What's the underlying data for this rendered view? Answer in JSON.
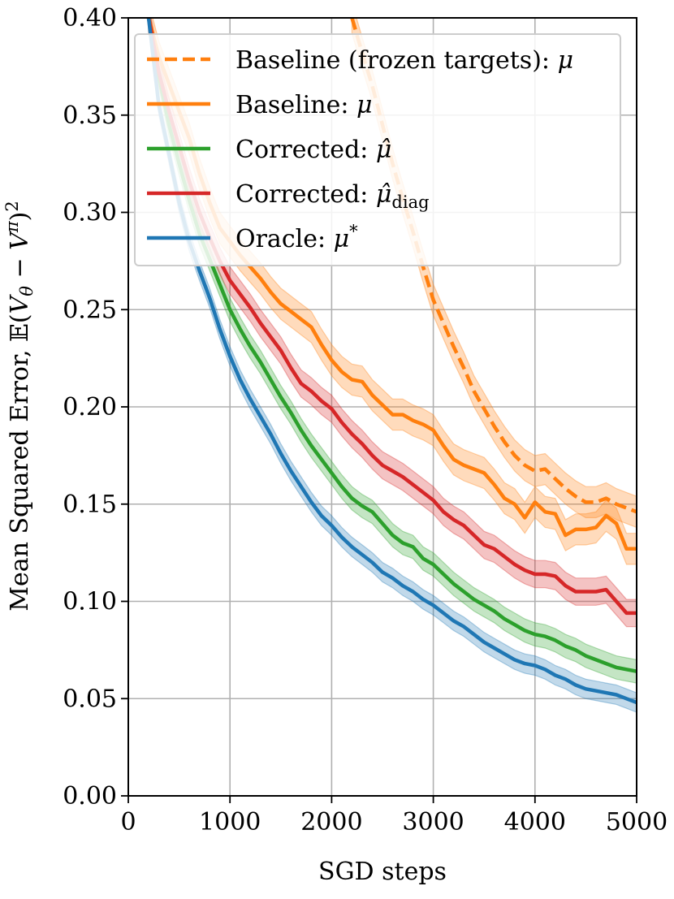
{
  "chart_data": {
    "type": "line",
    "title": "",
    "xlabel": "SGD steps",
    "ylabel": "Mean Squared Error, 𝔼(V_θ − V^π)²",
    "ylabel_parts": {
      "prefix": "Mean Squared Error, ",
      "E": "𝔼",
      "open": "(",
      "V1": "V",
      "sub1": "θ",
      "minus": " − ",
      "V2": "V",
      "sup2": "π",
      "close": ")",
      "sq": "2"
    },
    "xlim": [
      0,
      5000
    ],
    "ylim": [
      0.0,
      0.4
    ],
    "grid": true,
    "legend_position": "top-right",
    "x_ticks": [
      {
        "value": 0,
        "label": "0"
      },
      {
        "value": 1000,
        "label": "1000"
      },
      {
        "value": 2000,
        "label": "2000"
      },
      {
        "value": 3000,
        "label": "3000"
      },
      {
        "value": 4000,
        "label": "4000"
      },
      {
        "value": 5000,
        "label": "5000"
      }
    ],
    "y_ticks": [
      {
        "value": 0.0,
        "label": "0.00"
      },
      {
        "value": 0.05,
        "label": "0.05"
      },
      {
        "value": 0.1,
        "label": "0.10"
      },
      {
        "value": 0.15,
        "label": "0.15"
      },
      {
        "value": 0.2,
        "label": "0.20"
      },
      {
        "value": 0.25,
        "label": "0.25"
      },
      {
        "value": 0.3,
        "label": "0.30"
      },
      {
        "value": 0.35,
        "label": "0.35"
      },
      {
        "value": 0.4,
        "label": "0.40"
      }
    ],
    "series": [
      {
        "name": "Baseline (frozen targets): μ",
        "label_text": "Baseline (frozen targets): ",
        "label_math": "μ",
        "color": "#ff7f0e",
        "dash": "dashed",
        "band": 0.008,
        "x": [
          2200,
          2300,
          2400,
          2500,
          2600,
          2700,
          2800,
          2900,
          3000,
          3100,
          3200,
          3300,
          3400,
          3500,
          3600,
          3700,
          3800,
          3900,
          4000,
          4100,
          4200,
          4300,
          4400,
          4500,
          4600,
          4700,
          4800,
          4900,
          5000
        ],
        "values": [
          0.4,
          0.382,
          0.365,
          0.345,
          0.325,
          0.307,
          0.29,
          0.272,
          0.255,
          0.243,
          0.231,
          0.22,
          0.208,
          0.199,
          0.19,
          0.182,
          0.175,
          0.17,
          0.167,
          0.168,
          0.163,
          0.158,
          0.154,
          0.151,
          0.151,
          0.153,
          0.15,
          0.148,
          0.146
        ]
      },
      {
        "name": "Baseline: μ",
        "label_text": "Baseline: ",
        "label_math": "μ",
        "color": "#ff7f0e",
        "dash": "solid",
        "band": 0.008,
        "x": [
          200,
          300,
          400,
          500,
          600,
          700,
          800,
          900,
          1000,
          1100,
          1200,
          1300,
          1400,
          1500,
          1600,
          1700,
          1800,
          1900,
          2000,
          2100,
          2200,
          2300,
          2400,
          2500,
          2600,
          2700,
          2800,
          2900,
          3000,
          3100,
          3200,
          3300,
          3400,
          3500,
          3600,
          3700,
          3800,
          3900,
          4000,
          4100,
          4200,
          4300,
          4400,
          4500,
          4600,
          4700,
          4800,
          4900,
          5000
        ],
        "values": [
          0.4,
          0.38,
          0.366,
          0.352,
          0.338,
          0.32,
          0.305,
          0.292,
          0.285,
          0.278,
          0.272,
          0.266,
          0.259,
          0.253,
          0.249,
          0.245,
          0.241,
          0.232,
          0.224,
          0.218,
          0.214,
          0.213,
          0.206,
          0.201,
          0.196,
          0.196,
          0.193,
          0.191,
          0.188,
          0.18,
          0.173,
          0.17,
          0.168,
          0.166,
          0.16,
          0.153,
          0.15,
          0.143,
          0.151,
          0.146,
          0.145,
          0.134,
          0.137,
          0.137,
          0.138,
          0.144,
          0.14,
          0.127,
          0.127
        ]
      },
      {
        "name": "Corrected: μ̂",
        "label_text": "Corrected: ",
        "label_math": "μ̂",
        "color": "#2ca02c",
        "dash": "solid",
        "band": 0.006,
        "x": [
          200,
          300,
          400,
          500,
          600,
          700,
          800,
          900,
          1000,
          1100,
          1200,
          1300,
          1400,
          1500,
          1600,
          1700,
          1800,
          1900,
          2000,
          2100,
          2200,
          2300,
          2400,
          2500,
          2600,
          2700,
          2800,
          2900,
          3000,
          3100,
          3200,
          3300,
          3400,
          3500,
          3600,
          3700,
          3800,
          3900,
          4000,
          4100,
          4200,
          4300,
          4400,
          4500,
          4600,
          4700,
          4800,
          4900,
          5000
        ],
        "values": [
          0.4,
          0.37,
          0.345,
          0.325,
          0.306,
          0.289,
          0.276,
          0.263,
          0.25,
          0.24,
          0.231,
          0.223,
          0.214,
          0.205,
          0.197,
          0.188,
          0.18,
          0.173,
          0.166,
          0.159,
          0.153,
          0.149,
          0.146,
          0.14,
          0.134,
          0.13,
          0.128,
          0.122,
          0.119,
          0.114,
          0.109,
          0.105,
          0.101,
          0.098,
          0.095,
          0.091,
          0.088,
          0.085,
          0.083,
          0.082,
          0.08,
          0.077,
          0.075,
          0.072,
          0.07,
          0.068,
          0.066,
          0.065,
          0.064
        ]
      },
      {
        "name": "Corrected: μ̂_diag",
        "label_text": "Corrected: ",
        "label_math": "μ̂",
        "label_sub": "diag",
        "color": "#d62728",
        "dash": "solid",
        "band": 0.007,
        "x": [
          200,
          300,
          400,
          500,
          600,
          700,
          800,
          900,
          1000,
          1100,
          1200,
          1300,
          1400,
          1500,
          1600,
          1700,
          1800,
          1900,
          2000,
          2100,
          2200,
          2300,
          2400,
          2500,
          2600,
          2700,
          2800,
          2900,
          3000,
          3100,
          3200,
          3300,
          3400,
          3500,
          3600,
          3700,
          3800,
          3900,
          4000,
          4100,
          4200,
          4300,
          4400,
          4500,
          4600,
          4700,
          4800,
          4900,
          5000
        ],
        "values": [
          0.4,
          0.372,
          0.352,
          0.334,
          0.316,
          0.3,
          0.287,
          0.275,
          0.265,
          0.258,
          0.251,
          0.243,
          0.236,
          0.229,
          0.22,
          0.212,
          0.208,
          0.203,
          0.199,
          0.192,
          0.186,
          0.181,
          0.175,
          0.17,
          0.167,
          0.164,
          0.16,
          0.156,
          0.152,
          0.146,
          0.142,
          0.139,
          0.134,
          0.129,
          0.127,
          0.123,
          0.119,
          0.116,
          0.114,
          0.114,
          0.113,
          0.108,
          0.105,
          0.105,
          0.105,
          0.106,
          0.1,
          0.094,
          0.094
        ]
      },
      {
        "name": "Oracle: μ*",
        "label_text": "Oracle: ",
        "label_math": "μ",
        "label_sup": "*",
        "color": "#1f77b4",
        "dash": "solid",
        "band": 0.005,
        "x": [
          200,
          300,
          400,
          500,
          600,
          700,
          800,
          900,
          1000,
          1100,
          1200,
          1300,
          1400,
          1500,
          1600,
          1700,
          1800,
          1900,
          2000,
          2100,
          2200,
          2300,
          2400,
          2500,
          2600,
          2700,
          2800,
          2900,
          3000,
          3100,
          3200,
          3300,
          3400,
          3500,
          3600,
          3700,
          3800,
          3900,
          4000,
          4100,
          4200,
          4300,
          4400,
          4500,
          4600,
          4700,
          4800,
          4900,
          5000
        ],
        "values": [
          0.4,
          0.355,
          0.33,
          0.305,
          0.285,
          0.27,
          0.256,
          0.24,
          0.226,
          0.214,
          0.204,
          0.195,
          0.186,
          0.176,
          0.167,
          0.159,
          0.151,
          0.144,
          0.139,
          0.133,
          0.128,
          0.124,
          0.12,
          0.115,
          0.112,
          0.108,
          0.105,
          0.101,
          0.098,
          0.094,
          0.09,
          0.087,
          0.083,
          0.079,
          0.076,
          0.073,
          0.07,
          0.068,
          0.067,
          0.065,
          0.062,
          0.06,
          0.057,
          0.055,
          0.054,
          0.053,
          0.052,
          0.05,
          0.048
        ]
      }
    ]
  }
}
